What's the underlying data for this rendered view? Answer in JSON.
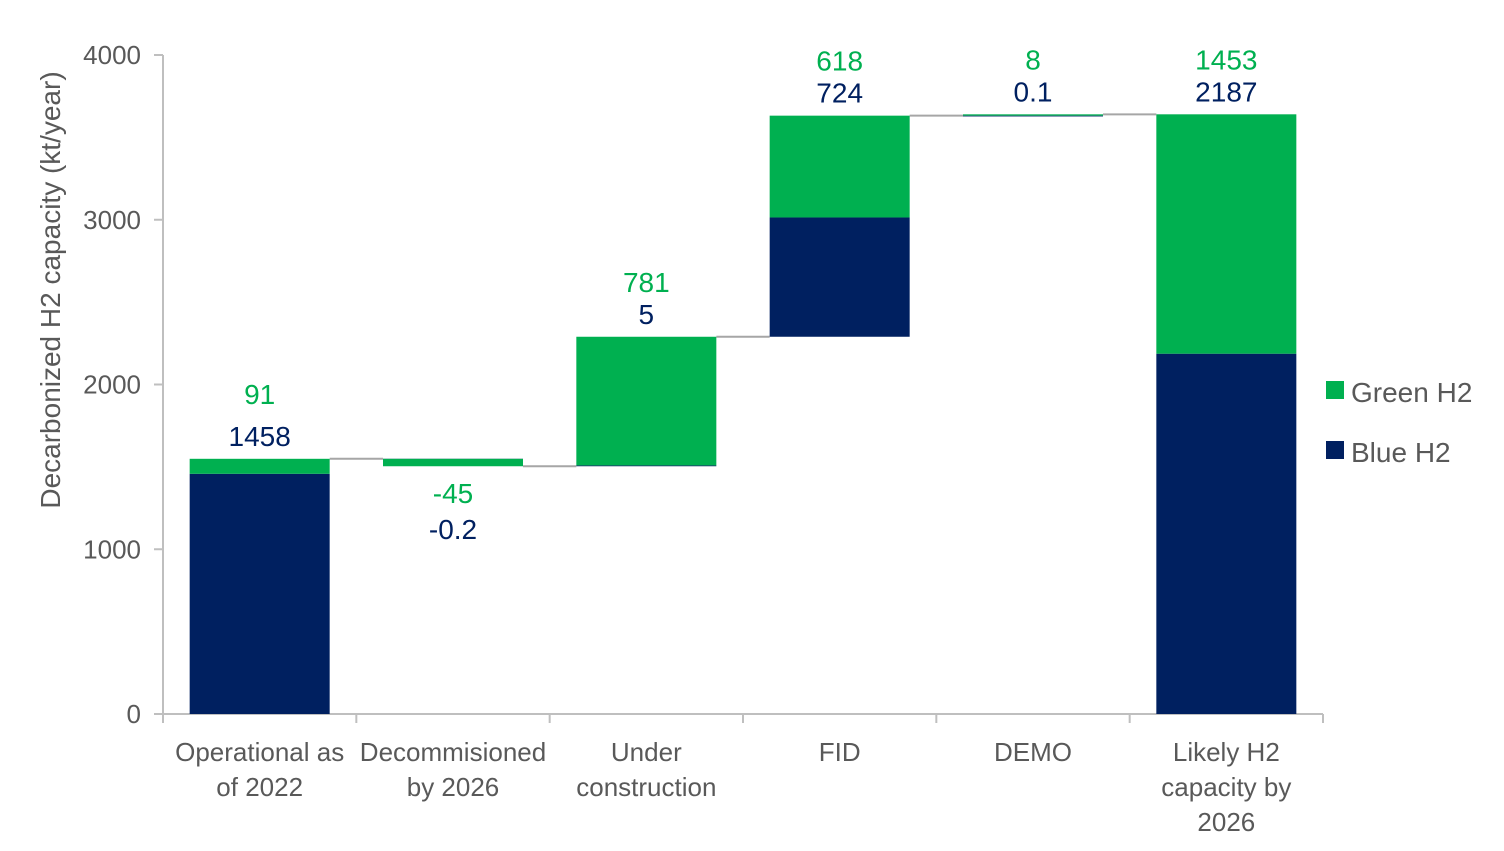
{
  "chart_data": {
    "type": "bar",
    "subtype": "stacked-waterfall",
    "title": "",
    "ylabel": "Decarbonized H2 capacity (kt/year)",
    "xlabel": "",
    "ylim": [
      0,
      4000
    ],
    "yticks": [
      0,
      1000,
      2000,
      3000,
      4000
    ],
    "grid": false,
    "legend_position": "right",
    "categories": [
      [
        "Operational as",
        "of 2022"
      ],
      [
        "Decommisioned",
        "by 2026"
      ],
      [
        "Under",
        "construction"
      ],
      [
        "FID"
      ],
      [
        "DEMO"
      ],
      [
        "Likely H2",
        "capacity by",
        "2026"
      ]
    ],
    "series": [
      {
        "name": "Blue H2",
        "color": "#002060",
        "values": [
          1458,
          -0.2,
          5,
          724,
          0.1,
          2187
        ],
        "labels": [
          "1458",
          "-0.2",
          "5",
          "724",
          "0.1",
          "2187"
        ]
      },
      {
        "name": "Green H2",
        "color": "#00B050",
        "values": [
          91,
          -45,
          781,
          618,
          8,
          1453
        ],
        "labels": [
          "91",
          "-45",
          "781",
          "618",
          "8",
          "1453"
        ]
      }
    ],
    "bar_kinds": [
      "total",
      "delta",
      "delta",
      "delta",
      "delta",
      "total"
    ]
  }
}
